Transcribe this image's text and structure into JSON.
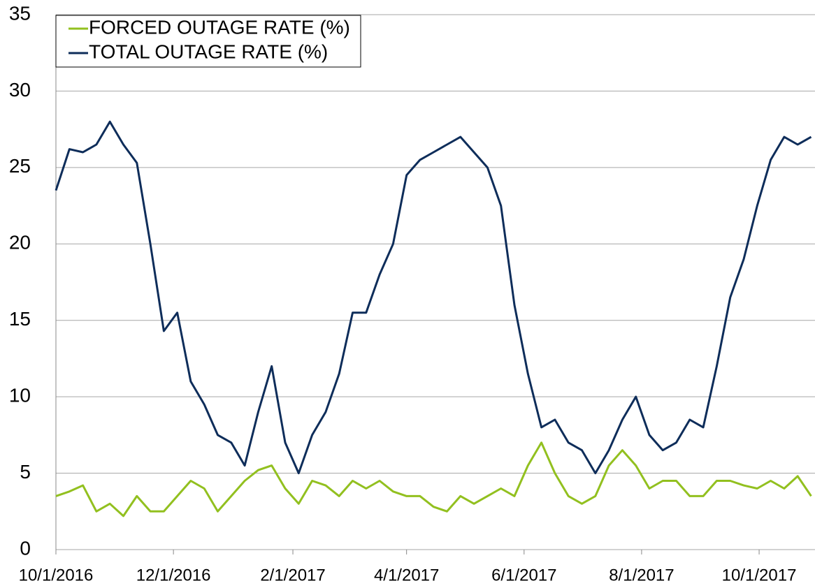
{
  "chart_data": {
    "type": "line",
    "x": [
      "2016-10-01",
      "2016-10-08",
      "2016-10-15",
      "2016-10-22",
      "2016-10-29",
      "2016-11-05",
      "2016-11-12",
      "2016-11-19",
      "2016-11-26",
      "2016-12-03",
      "2016-12-10",
      "2016-12-17",
      "2016-12-24",
      "2016-12-31",
      "2017-01-07",
      "2017-01-14",
      "2017-01-21",
      "2017-01-28",
      "2017-02-04",
      "2017-02-11",
      "2017-02-18",
      "2017-02-25",
      "2017-03-04",
      "2017-03-11",
      "2017-03-18",
      "2017-03-25",
      "2017-04-01",
      "2017-04-08",
      "2017-04-15",
      "2017-04-22",
      "2017-04-29",
      "2017-05-06",
      "2017-05-13",
      "2017-05-20",
      "2017-05-27",
      "2017-06-03",
      "2017-06-10",
      "2017-06-17",
      "2017-06-24",
      "2017-07-01",
      "2017-07-08",
      "2017-07-15",
      "2017-07-22",
      "2017-07-29",
      "2017-08-05",
      "2017-08-12",
      "2017-08-19",
      "2017-08-26",
      "2017-09-02",
      "2017-09-09",
      "2017-09-16",
      "2017-09-23",
      "2017-09-30",
      "2017-10-07",
      "2017-10-14",
      "2017-10-21",
      "2017-10-28"
    ],
    "series": [
      {
        "name": "FORCED OUTAGE RATE (%)",
        "color": "#92c01f",
        "values": [
          3.5,
          3.8,
          4.2,
          2.5,
          3.0,
          2.2,
          3.5,
          2.5,
          2.5,
          3.5,
          4.5,
          4.0,
          2.5,
          3.5,
          4.5,
          5.2,
          5.5,
          4.0,
          3.0,
          4.5,
          4.2,
          3.5,
          4.5,
          4.0,
          4.5,
          3.8,
          3.5,
          3.5,
          2.8,
          2.5,
          3.5,
          3.0,
          3.5,
          4.0,
          3.5,
          5.5,
          7.0,
          5.0,
          3.5,
          3.0,
          3.5,
          5.5,
          6.5,
          5.5,
          4.0,
          4.5,
          4.5,
          3.5,
          3.5,
          4.5,
          4.5,
          4.2,
          4.0,
          4.5,
          4.0,
          4.8,
          3.5
        ]
      },
      {
        "name": "TOTAL OUTAGE RATE (%)",
        "color": "#0e2d5a",
        "values": [
          23.5,
          26.2,
          26.0,
          26.5,
          28.0,
          26.5,
          25.3,
          20.0,
          14.3,
          15.5,
          11.0,
          9.5,
          7.5,
          7.0,
          5.5,
          9.0,
          12.0,
          7.0,
          5.0,
          7.5,
          9.0,
          11.5,
          15.5,
          15.5,
          18.0,
          20.0,
          24.5,
          25.5,
          26.0,
          26.5,
          27.0,
          26.0,
          25.0,
          22.5,
          16.0,
          11.5,
          8.0,
          8.5,
          7.0,
          6.5,
          5.0,
          6.5,
          8.5,
          10.0,
          7.5,
          6.5,
          7.0,
          8.5,
          8.0,
          12.0,
          16.5,
          19.0,
          22.5,
          25.5,
          27.0,
          26.5,
          27.0
        ]
      }
    ],
    "xlim": [
      "2016-10-01",
      "2017-10-30"
    ],
    "xticks": [
      {
        "value": "2016-10-01",
        "label": "10/1/2016"
      },
      {
        "value": "2016-12-01",
        "label": "12/1/2016"
      },
      {
        "value": "2017-02-01",
        "label": "2/1/2017"
      },
      {
        "value": "2017-04-01",
        "label": "4/1/2017"
      },
      {
        "value": "2017-06-01",
        "label": "6/1/2017"
      },
      {
        "value": "2017-08-01",
        "label": "8/1/2017"
      },
      {
        "value": "2017-10-01",
        "label": "10/1/2017"
      }
    ],
    "ylim": [
      0,
      35
    ],
    "yticks": [
      0,
      5,
      10,
      15,
      20,
      25,
      30,
      35
    ],
    "grid": true
  }
}
